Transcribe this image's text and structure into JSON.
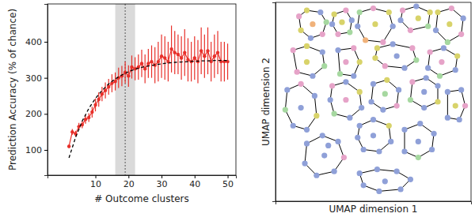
{
  "chart_data": [
    {
      "type": "line",
      "x_label": "# Outcome clusters",
      "y_label": "Prediction Accuracy (% of chance)",
      "xlim": [
        -4.5,
        52.5
      ],
      "xticks": [
        10,
        20,
        30,
        40,
        50
      ],
      "ylim": [
        30,
        505
      ],
      "yticks": [
        100,
        200,
        300,
        400
      ],
      "vertical_line": 19,
      "shaded_range": [
        16,
        22
      ],
      "series": [
        {
          "color": "#e8302a",
          "marker": "circle",
          "line_style": "solid",
          "x": [
            2,
            3,
            4,
            5,
            6,
            7,
            8,
            9,
            10,
            11,
            12,
            13,
            14,
            15,
            16,
            17,
            18,
            19,
            20,
            21,
            22,
            23,
            24,
            25,
            26,
            27,
            28,
            29,
            30,
            31,
            32,
            33,
            34,
            35,
            36,
            37,
            38,
            39,
            40,
            41,
            42,
            43,
            44,
            45,
            46,
            47,
            48,
            49,
            50
          ],
          "values": [
            110,
            150,
            145,
            165,
            170,
            185,
            190,
            205,
            225,
            240,
            255,
            265,
            275,
            285,
            290,
            300,
            305,
            315,
            305,
            330,
            325,
            330,
            340,
            325,
            340,
            345,
            335,
            345,
            360,
            355,
            345,
            380,
            370,
            365,
            355,
            370,
            350,
            345,
            355,
            345,
            375,
            360,
            375,
            345,
            360,
            370,
            345,
            345,
            345
          ],
          "errors": [
            5,
            8,
            8,
            10,
            10,
            12,
            12,
            15,
            18,
            20,
            20,
            22,
            22,
            25,
            25,
            28,
            28,
            30,
            30,
            32,
            32,
            35,
            38,
            40,
            40,
            45,
            50,
            55,
            60,
            60,
            55,
            65,
            60,
            55,
            60,
            65,
            60,
            55,
            60,
            60,
            65,
            60,
            65,
            55,
            60,
            60,
            55,
            55,
            50
          ]
        },
        {
          "color": "#000000",
          "marker": "none",
          "line_style": "dashed",
          "x": [
            2,
            4,
            6,
            8,
            10,
            12,
            14,
            16,
            18,
            20,
            22,
            24,
            26,
            28,
            30,
            32,
            34,
            36,
            38,
            40,
            42,
            44,
            46,
            48,
            50
          ],
          "values": [
            78,
            135,
            180,
            215,
            243,
            265,
            283,
            297,
            308,
            317,
            324,
            329,
            333,
            336,
            339,
            341,
            343,
            344,
            345,
            346,
            347,
            347,
            348,
            348,
            348
          ]
        }
      ]
    },
    {
      "type": "scatter",
      "x_label": "UMAP dimension 1",
      "y_label": "UMAP dimension 2",
      "tick_labels": false,
      "xlim": [
        0,
        10
      ],
      "ylim": [
        0,
        10
      ],
      "series": [
        {
          "x": [
            1.2,
            1.6,
            2.3,
            2.6,
            2.4,
            1.8,
            1.3,
            1.9
          ],
          "values": [
            9.3,
            9.6,
            9.5,
            9.0,
            8.4,
            8.2,
            8.6,
            8.9
          ],
          "colors": [
            "#e6a3c8",
            "#d8d36a",
            "#8fa0d8",
            "#a6d8a0",
            "#e6a3c8",
            "#8fa0d8",
            "#d8d36a",
            "#f0b27a"
          ]
        },
        {
          "x": [
            3.0,
            3.6,
            3.9,
            3.8,
            3.2,
            2.9,
            3.4
          ],
          "values": [
            9.4,
            9.6,
            9.1,
            8.5,
            8.4,
            8.9,
            9.0
          ],
          "colors": [
            "#d8d36a",
            "#e6a3c8",
            "#8fa0d8",
            "#a6d8a0",
            "#e6a3c8",
            "#8fa0d8",
            "#d8d36a"
          ]
        },
        {
          "x": [
            4.3,
            5.0,
            5.8,
            6.0,
            5.5,
            4.6,
            4.2,
            5.1
          ],
          "values": [
            9.5,
            9.7,
            9.5,
            8.8,
            8.0,
            8.1,
            8.8,
            8.9
          ],
          "colors": [
            "#a6d8a0",
            "#e6a3c8",
            "#d8d36a",
            "#8fa0d8",
            "#e6a3c8",
            "#f0b27a",
            "#8fa0d8",
            "#d8d36a"
          ]
        },
        {
          "x": [
            6.5,
            7.2,
            7.9,
            7.8,
            6.9,
            6.4,
            7.3
          ],
          "values": [
            9.6,
            9.8,
            9.5,
            8.8,
            8.6,
            9.1,
            9.2
          ],
          "colors": [
            "#e6a3c8",
            "#8fa0d8",
            "#d8d36a",
            "#a6d8a0",
            "#e6a3c8",
            "#8fa0d8",
            "#d8d36a"
          ]
        },
        {
          "x": [
            8.3,
            9.0,
            9.6,
            9.5,
            8.8,
            8.2,
            8.9
          ],
          "values": [
            9.5,
            9.7,
            9.2,
            8.4,
            8.0,
            8.6,
            8.9
          ],
          "colors": [
            "#d8d36a",
            "#e6a3c8",
            "#8fa0d8",
            "#e6a3c8",
            "#a6d8a0",
            "#8fa0d8",
            "#d8d36a"
          ]
        },
        {
          "x": [
            0.9,
            1.6,
            2.4,
            2.5,
            1.9,
            1.1,
            1.6
          ],
          "values": [
            7.6,
            7.8,
            7.5,
            6.8,
            6.3,
            6.5,
            7.0
          ],
          "colors": [
            "#e6a3c8",
            "#d8d36a",
            "#8fa0d8",
            "#a6d8a0",
            "#8fa0d8",
            "#e6a3c8",
            "#d8d36a"
          ]
        },
        {
          "x": [
            3.2,
            4.0,
            4.3,
            4.0,
            3.3,
            3.6
          ],
          "values": [
            7.6,
            7.7,
            7.0,
            6.3,
            6.4,
            7.0
          ],
          "colors": [
            "#8fa0d8",
            "#e6a3c8",
            "#d8d36a",
            "#8fa0d8",
            "#a6d8a0",
            "#e6a3c8"
          ]
        },
        {
          "x": [
            5.2,
            6.0,
            7.0,
            7.2,
            6.6,
            5.6,
            5.1,
            6.2
          ],
          "values": [
            7.7,
            7.9,
            7.7,
            7.1,
            6.7,
            6.8,
            7.2,
            7.3
          ],
          "colors": [
            "#d8d36a",
            "#8fa0d8",
            "#e6a3c8",
            "#a6d8a0",
            "#8fa0d8",
            "#e6a3c8",
            "#d8d36a",
            "#8fa0d8"
          ]
        },
        {
          "x": [
            7.9,
            8.6,
            9.3,
            9.2,
            8.4,
            7.8,
            8.5
          ],
          "values": [
            7.5,
            7.7,
            7.3,
            6.6,
            6.3,
            6.7,
            7.0
          ],
          "colors": [
            "#e6a3c8",
            "#8fa0d8",
            "#d8d36a",
            "#8fa0d8",
            "#a6d8a0",
            "#8fa0d8",
            "#e6a3c8"
          ]
        },
        {
          "x": [
            0.6,
            1.3,
            2.0,
            2.1,
            1.6,
            0.9,
            0.5,
            1.3
          ],
          "values": [
            5.6,
            5.9,
            5.3,
            4.3,
            3.6,
            3.8,
            4.6,
            4.7
          ],
          "colors": [
            "#8fa0d8",
            "#e6a3c8",
            "#8fa0d8",
            "#d8d36a",
            "#8fa0d8",
            "#8fa0d8",
            "#a6d8a0",
            "#8fa0d8"
          ]
        },
        {
          "x": [
            2.9,
            3.6,
            4.3,
            4.4,
            3.8,
            3.0,
            2.8,
            3.6
          ],
          "values": [
            5.8,
            6.0,
            5.5,
            4.7,
            4.2,
            4.4,
            5.1,
            5.1
          ],
          "colors": [
            "#e6a3c8",
            "#8fa0d8",
            "#d8d36a",
            "#8fa0d8",
            "#8fa0d8",
            "#a6d8a0",
            "#8fa0d8",
            "#e6a3c8"
          ]
        },
        {
          "x": [
            5.0,
            5.7,
            6.3,
            6.2,
            5.5,
            4.9,
            5.6
          ],
          "values": [
            5.9,
            6.1,
            5.6,
            4.8,
            4.6,
            5.0,
            5.4
          ],
          "colors": [
            "#8fa0d8",
            "#d8d36a",
            "#8fa0d8",
            "#e6a3c8",
            "#8fa0d8",
            "#8fa0d8",
            "#a6d8a0"
          ]
        },
        {
          "x": [
            7.0,
            7.7,
            8.3,
            8.3,
            7.6,
            6.9,
            7.6
          ],
          "values": [
            6.0,
            6.2,
            5.8,
            5.0,
            4.7,
            5.1,
            5.5
          ],
          "colors": [
            "#e6a3c8",
            "#8fa0d8",
            "#8fa0d8",
            "#d8d36a",
            "#8fa0d8",
            "#a6d8a0",
            "#8fa0d8"
          ]
        },
        {
          "x": [
            8.8,
            9.5,
            9.7,
            9.4,
            8.8,
            9.2
          ],
          "values": [
            5.5,
            5.6,
            4.8,
            4.1,
            4.2,
            4.8
          ],
          "colors": [
            "#8fa0d8",
            "#8fa0d8",
            "#e6a3c8",
            "#8fa0d8",
            "#8fa0d8",
            "#d8d36a"
          ]
        },
        {
          "x": [
            1.6,
            2.4,
            3.2,
            3.5,
            3.0,
            2.1,
            1.5,
            2.5,
            2.7
          ],
          "values": [
            2.9,
            3.3,
            3.0,
            2.2,
            1.5,
            1.3,
            1.9,
            2.3,
            2.8
          ],
          "colors": [
            "#8fa0d8",
            "#8fa0d8",
            "#8fa0d8",
            "#e6a3c8",
            "#8fa0d8",
            "#8fa0d8",
            "#8fa0d8",
            "#8fa0d8",
            "#8fa0d8"
          ]
        },
        {
          "x": [
            4.3,
            5.0,
            5.8,
            5.9,
            5.3,
            4.5,
            4.2,
            5.0
          ],
          "values": [
            3.8,
            4.1,
            3.8,
            3.0,
            2.5,
            2.6,
            3.2,
            3.3
          ],
          "colors": [
            "#8fa0d8",
            "#8fa0d8",
            "#d8d36a",
            "#8fa0d8",
            "#8fa0d8",
            "#8fa0d8",
            "#8fa0d8",
            "#8fa0d8"
          ]
        },
        {
          "x": [
            6.6,
            7.4,
            8.1,
            8.0,
            7.3,
            6.6,
            7.3
          ],
          "values": [
            3.6,
            3.9,
            3.4,
            2.6,
            2.2,
            2.5,
            3.0
          ],
          "colors": [
            "#8fa0d8",
            "#8fa0d8",
            "#8fa0d8",
            "#8fa0d8",
            "#a6d8a0",
            "#8fa0d8",
            "#8fa0d8"
          ]
        },
        {
          "x": [
            4.3,
            5.2,
            6.2,
            6.9,
            6.4,
            5.3,
            4.5,
            5.6
          ],
          "values": [
            1.4,
            1.6,
            1.5,
            1.1,
            0.6,
            0.5,
            0.8,
            1.0
          ],
          "colors": [
            "#8fa0d8",
            "#8fa0d8",
            "#8fa0d8",
            "#8fa0d8",
            "#8fa0d8",
            "#8fa0d8",
            "#8fa0d8",
            "#8fa0d8"
          ]
        }
      ]
    }
  ]
}
